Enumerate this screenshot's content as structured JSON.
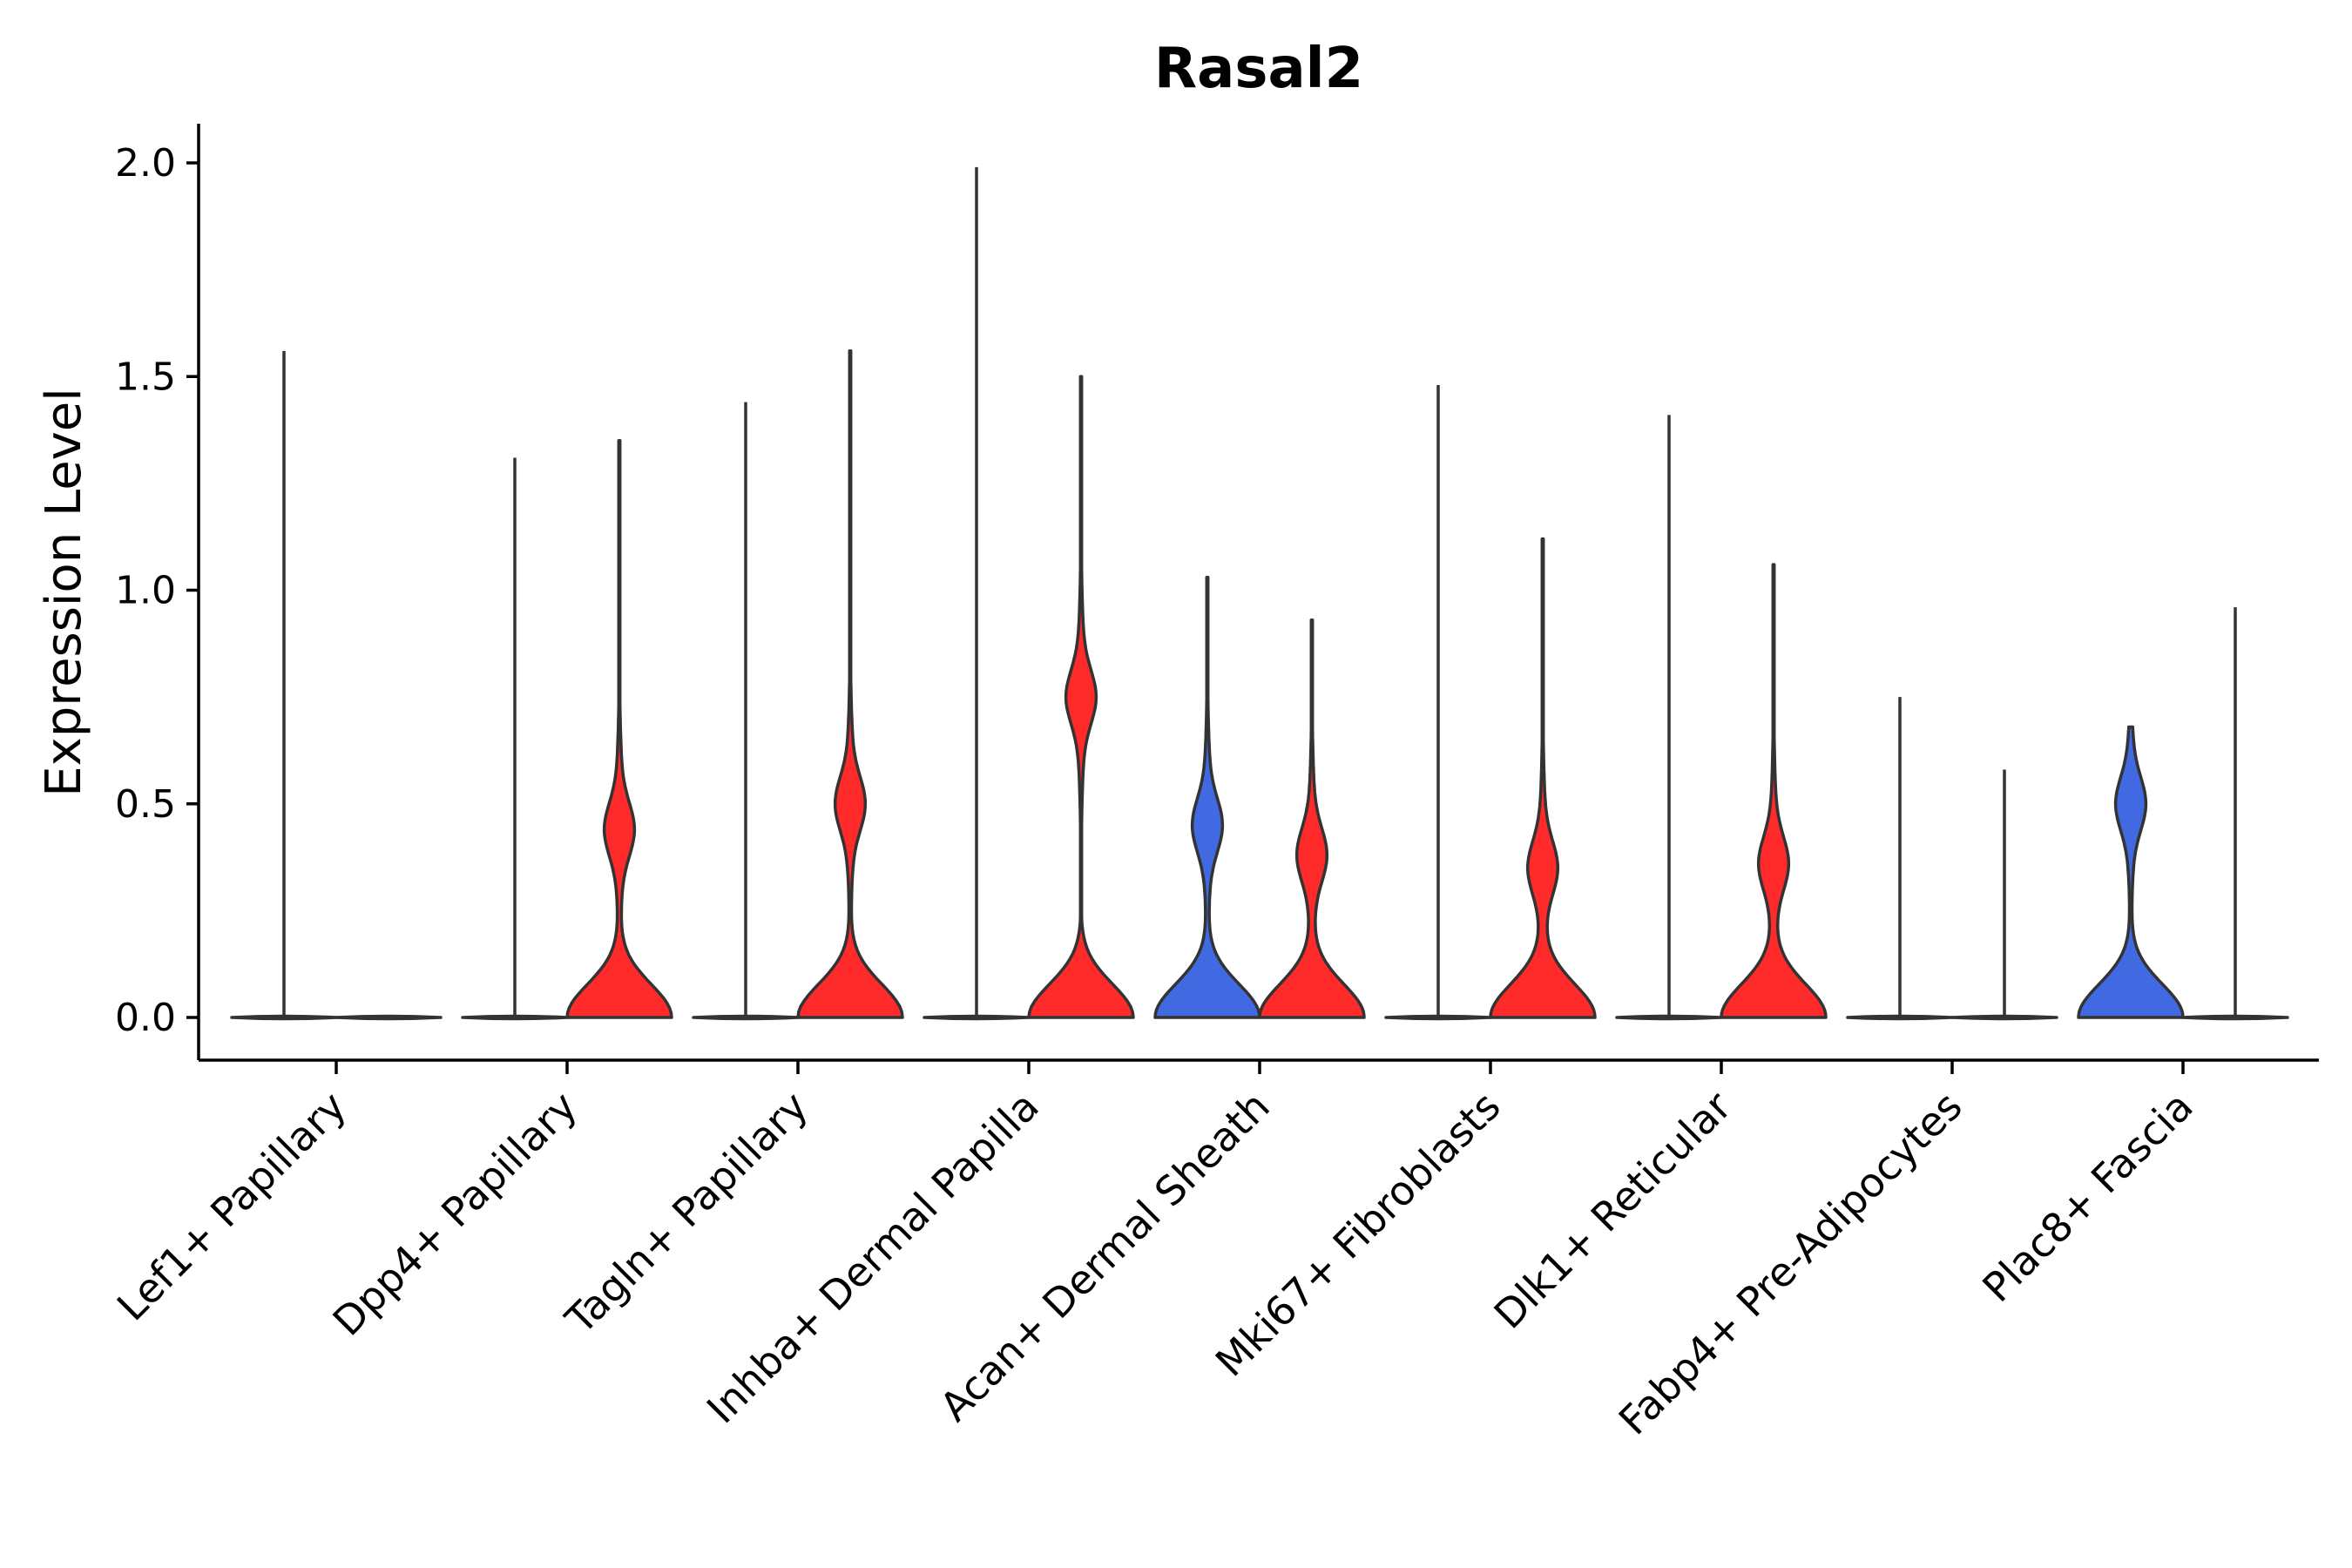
{
  "chart_data": {
    "type": "violin",
    "title": "Rasal2",
    "xlabel": "",
    "ylabel": "Expression Level",
    "ylim": [
      -0.1,
      2.1
    ],
    "yticks": [
      "0.0",
      "0.5",
      "1.0",
      "1.5",
      "2.0"
    ],
    "grid": false,
    "legend": "none",
    "colors": {
      "group_a": "#4169E1",
      "group_b": "#FF2A2A",
      "axis": "#000000",
      "outline": "#333333"
    },
    "categories": [
      "Lef1+ Papillary",
      "Dpp4+ Papillary",
      "Tagln+ Papillary",
      "Inhba+ Dermal Papilla",
      "Acan+ Dermal Sheath",
      "Mki67+ Fibroblasts",
      "Dlk1+ Reticular",
      "Fabp4+ Pre-Adipocytes",
      "Plac8+ Fascia"
    ],
    "series": [
      {
        "name": "group_a",
        "color": "#4169E1",
        "max_values": [
          1.56,
          1.31,
          1.44,
          1.99,
          1.03,
          1.48,
          1.41,
          0.75,
          0.68
        ],
        "modes": [
          [
            0.0
          ],
          [
            0.0
          ],
          [
            0.0
          ],
          [
            0.0
          ],
          [
            0.0,
            0.45
          ],
          [
            0.0
          ],
          [
            0.0
          ],
          [
            0.0
          ],
          [
            0.0,
            0.5
          ]
        ]
      },
      {
        "name": "group_b",
        "color": "#FF2A2A",
        "max_values": [
          0.0,
          1.35,
          1.56,
          1.5,
          0.93,
          1.12,
          1.06,
          0.58,
          0.96
        ],
        "modes": [
          [
            0.0
          ],
          [
            0.0,
            0.44
          ],
          [
            0.0,
            0.5
          ],
          [
            0.0,
            0.75
          ],
          [
            0.0,
            0.38
          ],
          [
            0.0,
            0.35
          ],
          [
            0.0,
            0.36
          ],
          [
            0.0
          ],
          [
            0.0
          ]
        ]
      }
    ]
  }
}
